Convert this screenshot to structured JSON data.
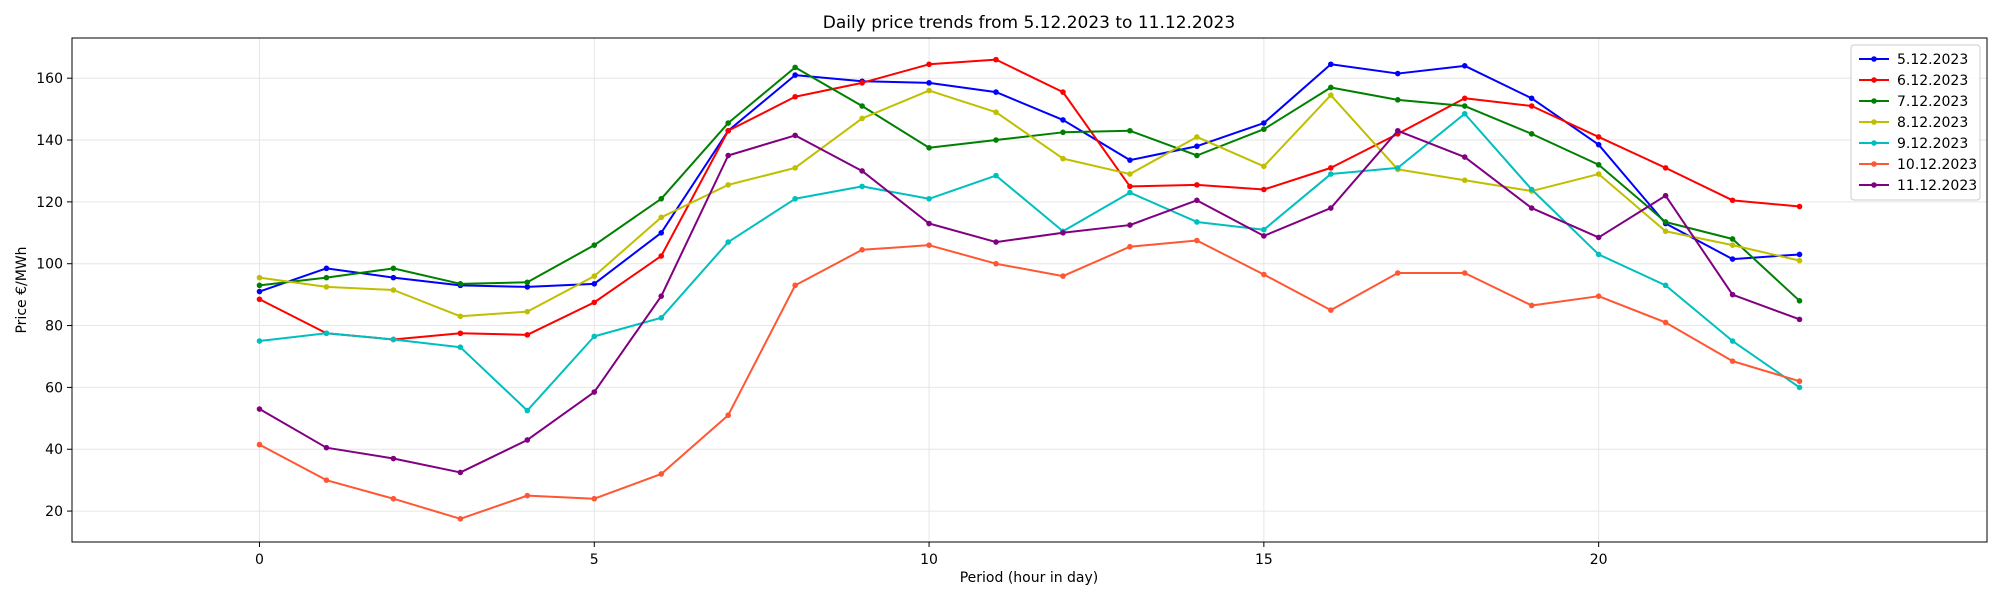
{
  "chart_data": {
    "type": "line",
    "title": "Daily price trends from 5.12.2023 to 11.12.2023",
    "xlabel": "Period (hour in day)",
    "ylabel": "Price €/MWh",
    "xlim": [
      -2.8,
      25.8
    ],
    "ylim": [
      10,
      173
    ],
    "xticks": [
      0,
      5,
      10,
      15,
      20
    ],
    "yticks": [
      20,
      40,
      60,
      80,
      100,
      120,
      140,
      160
    ],
    "grid": true,
    "legend_position": "top-right",
    "x": [
      0,
      1,
      2,
      3,
      4,
      5,
      6,
      7,
      8,
      9,
      10,
      11,
      12,
      13,
      14,
      15,
      16,
      17,
      18,
      19,
      20,
      21,
      22,
      23
    ],
    "series": [
      {
        "name": "5.12.2023",
        "color": "#0000ff",
        "values": [
          91,
          98.5,
          95.5,
          93,
          92.5,
          93.5,
          110,
          143,
          161,
          159,
          158.5,
          155.5,
          146.5,
          133.5,
          138,
          145.5,
          164.5,
          161.5,
          164,
          153.5,
          138.5,
          113,
          101.5,
          103
        ]
      },
      {
        "name": "6.12.2023",
        "color": "#ff0000",
        "values": [
          88.5,
          77.5,
          75.5,
          77.5,
          77,
          87.5,
          102.5,
          143,
          154,
          158.5,
          164.5,
          166,
          155.5,
          125,
          125.5,
          124,
          131,
          142,
          153.5,
          151,
          141,
          131,
          120.5,
          118.5
        ]
      },
      {
        "name": "7.12.2023",
        "color": "#008000",
        "values": [
          93,
          95.5,
          98.5,
          93.5,
          94,
          106,
          121,
          145.5,
          163.5,
          151,
          137.5,
          140,
          142.5,
          143,
          135,
          143.5,
          157,
          153,
          151,
          142,
          132,
          113.5,
          108,
          88
        ]
      },
      {
        "name": "8.12.2023",
        "color": "#bfbf00",
        "values": [
          95.5,
          92.5,
          91.5,
          83,
          84.5,
          96,
          115,
          125.5,
          131,
          147,
          156,
          149,
          134,
          129,
          141,
          131.5,
          154.5,
          130.5,
          127,
          123.5,
          129,
          110.5,
          106,
          101
        ]
      },
      {
        "name": "9.12.2023",
        "color": "#00bfbf",
        "values": [
          75,
          77.5,
          75.5,
          73,
          52.5,
          76.5,
          82.5,
          107,
          121,
          125,
          121,
          128.5,
          110.5,
          123,
          113.5,
          111,
          129,
          131,
          148.5,
          124,
          103,
          93,
          75,
          60
        ]
      },
      {
        "name": "10.12.2023",
        "color": "#ff5733",
        "values": [
          41.5,
          30,
          24,
          17.5,
          25,
          24,
          32,
          51,
          93,
          104.5,
          106,
          100,
          96,
          105.5,
          107.5,
          96.5,
          85,
          97,
          97,
          86.5,
          89.5,
          81,
          68.5,
          62
        ]
      },
      {
        "name": "11.12.2023",
        "color": "#800080",
        "values": [
          53,
          40.5,
          37,
          32.5,
          43,
          58.5,
          89.5,
          135,
          141.5,
          130,
          113,
          107,
          110,
          112.5,
          120.5,
          109,
          118,
          143,
          134.5,
          118,
          108.5,
          122,
          90,
          82
        ]
      }
    ]
  }
}
